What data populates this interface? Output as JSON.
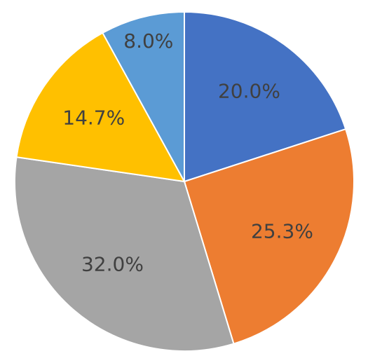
{
  "chart_data": {
    "type": "pie",
    "values": [
      20.0,
      25.3,
      32.0,
      14.7,
      8.0
    ],
    "value_labels": [
      "20.0%",
      "25.3%",
      "32.0%",
      "14.7%",
      "8.0%"
    ],
    "colors": [
      "#4472c4",
      "#ed7d31",
      "#a5a5a5",
      "#ffc000",
      "#5b9bd5"
    ]
  }
}
